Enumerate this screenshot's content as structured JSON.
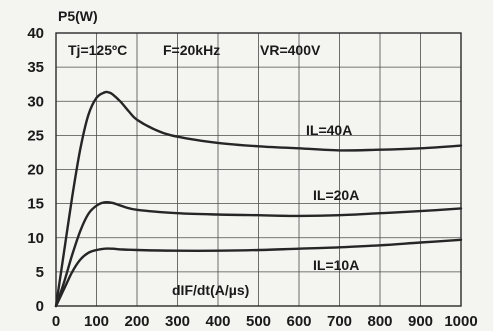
{
  "chart_data": {
    "type": "line",
    "title": "",
    "ylabel": "P5(W)",
    "xlabel": "dIF/dt(A/µs)",
    "xlim": [
      0,
      1000
    ],
    "ylim": [
      0,
      40
    ],
    "x_ticks": [
      "0",
      "100",
      "200",
      "300",
      "400",
      "500",
      "600",
      "700",
      "800",
      "900",
      "1000"
    ],
    "y_ticks": [
      "0",
      "5",
      "10",
      "15",
      "20",
      "25",
      "30",
      "35",
      "40"
    ],
    "grid": true,
    "annotations": {
      "tj": "Tj=125ºC",
      "freq": "F=20kHz",
      "vr": "VR=400V"
    },
    "series": [
      {
        "name": "IL=40A",
        "x": [
          0,
          20,
          40,
          60,
          80,
          100,
          120,
          130,
          140,
          160,
          180,
          200,
          250,
          300,
          400,
          500,
          600,
          700,
          800,
          900,
          1000
        ],
        "values": [
          0,
          8,
          16,
          23,
          28,
          30.5,
          31.3,
          31.3,
          31.0,
          29.9,
          28.5,
          27.3,
          25.7,
          24.8,
          23.9,
          23.4,
          23.1,
          22.8,
          22.9,
          23.1,
          23.5
        ]
      },
      {
        "name": "IL=20A",
        "x": [
          0,
          20,
          40,
          60,
          80,
          100,
          120,
          140,
          160,
          200,
          300,
          400,
          500,
          600,
          700,
          800,
          900,
          1000
        ],
        "values": [
          0,
          3.5,
          7.5,
          11,
          13.5,
          14.7,
          15.2,
          15.1,
          14.7,
          14.1,
          13.6,
          13.4,
          13.3,
          13.2,
          13.3,
          13.6,
          13.9,
          14.3
        ]
      },
      {
        "name": "IL=10A",
        "x": [
          0,
          20,
          40,
          60,
          80,
          100,
          120,
          140,
          160,
          200,
          300,
          400,
          500,
          600,
          700,
          800,
          900,
          1000
        ],
        "values": [
          0,
          2.5,
          5,
          6.8,
          7.8,
          8.2,
          8.4,
          8.4,
          8.3,
          8.2,
          8.1,
          8.1,
          8.2,
          8.4,
          8.6,
          8.9,
          9.3,
          9.7
        ]
      }
    ]
  }
}
